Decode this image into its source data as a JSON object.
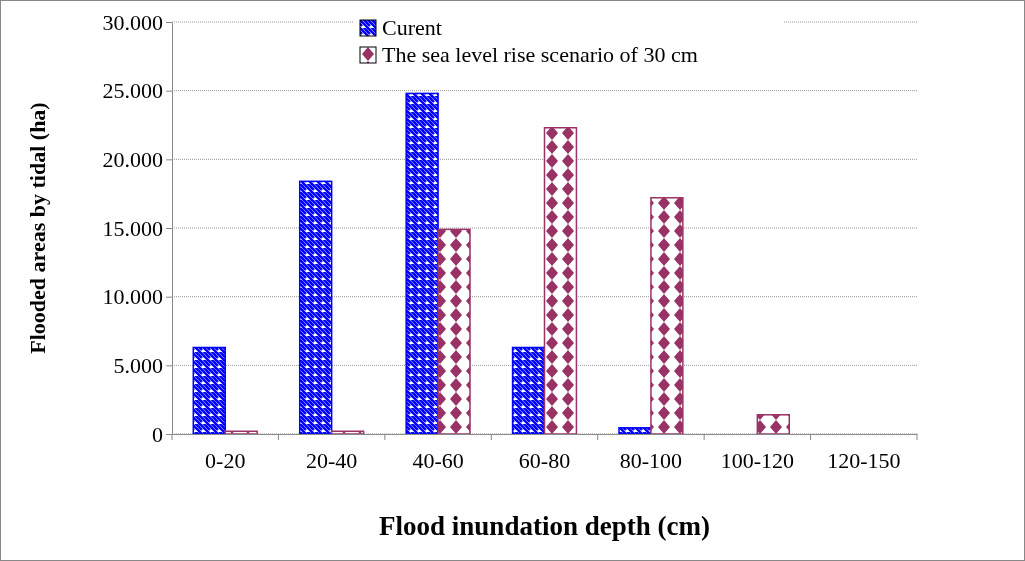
{
  "chart_data": {
    "type": "bar",
    "xlabel": "Flood inundation depth (cm)",
    "ylabel": "Flooded areas by tidal (ha)",
    "categories": [
      "0-20",
      "20-40",
      "40-60",
      "60-80",
      "80-100",
      "100-120",
      "120-150"
    ],
    "series": [
      {
        "name": "Curent",
        "color": "#0000ff",
        "values": [
          6300,
          18400,
          24800,
          6300,
          450,
          0,
          0
        ]
      },
      {
        "name": "The sea level rise scenario of 30 cm",
        "color": "#993366",
        "values": [
          200,
          200,
          14900,
          22300,
          17200,
          1400,
          0
        ]
      }
    ],
    "ylim": [
      0,
      30000
    ],
    "yticks": [
      {
        "value": 0,
        "label": "0"
      },
      {
        "value": 5000,
        "label": "5.000"
      },
      {
        "value": 10000,
        "label": "10.000"
      },
      {
        "value": 15000,
        "label": "15.000"
      },
      {
        "value": 20000,
        "label": "20.000"
      },
      {
        "value": 25000,
        "label": "25.000"
      },
      {
        "value": 30000,
        "label": "30.000"
      }
    ],
    "grid": "y",
    "legend": "top"
  }
}
